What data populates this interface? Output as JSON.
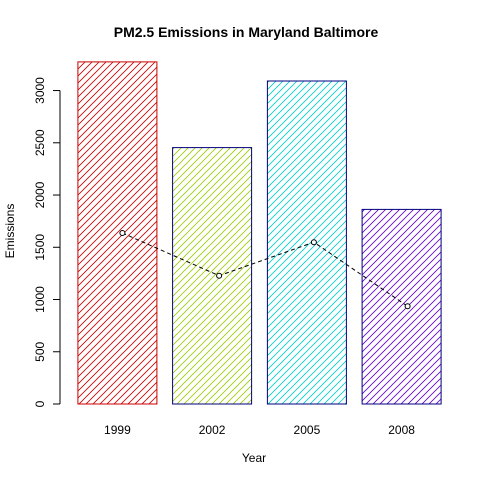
{
  "chart_data": {
    "type": "bar",
    "title": "PM2.5 Emissions in Maryland Baltimore",
    "xlabel": "Year",
    "ylabel": "Emissions",
    "categories": [
      "1999",
      "2002",
      "2005",
      "2008"
    ],
    "series": [
      {
        "values": [
          3274,
          2454,
          3091,
          1862
        ],
        "colors": [
          "#cc0000",
          "#99cc00",
          "#00cccc",
          "#6600cc"
        ],
        "border_colors": [
          "#cc0000",
          "#000080",
          "#000080",
          "#000080"
        ],
        "fill": "diagonal-hatch"
      },
      {
        "type": "line",
        "style": "dashed",
        "marker": "open-circle",
        "color": "#000000",
        "values": [
          1637,
          1228,
          1549,
          935
        ]
      }
    ],
    "ylim": [
      0,
      3300
    ],
    "yticks": [
      0,
      500,
      1000,
      1500,
      2000,
      2500,
      3000
    ],
    "grid": false,
    "legend": "none"
  }
}
